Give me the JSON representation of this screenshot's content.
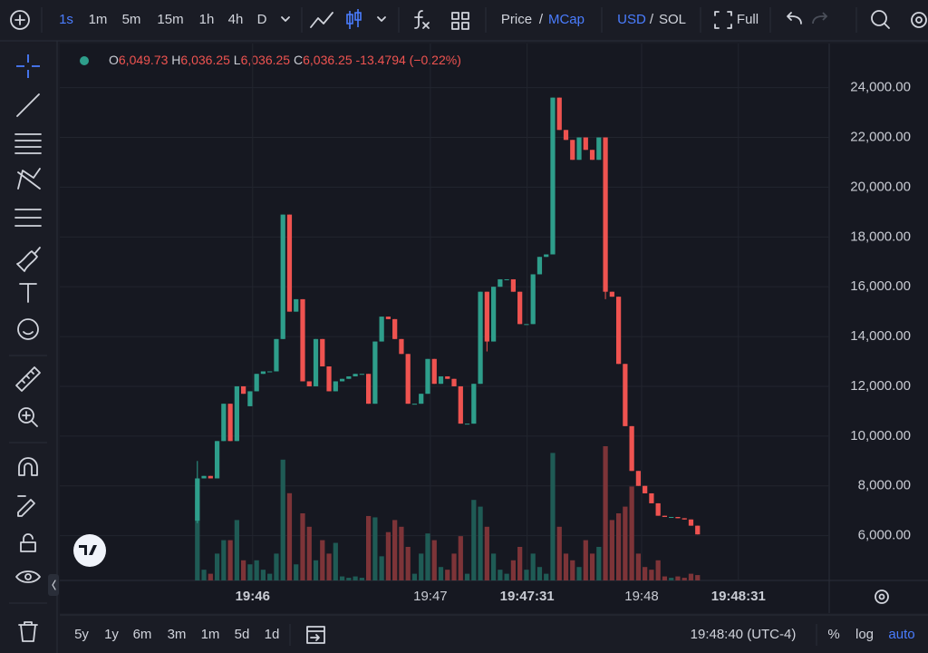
{
  "toolbar": {
    "intervals": [
      "1s",
      "1m",
      "5m",
      "15m",
      "1h",
      "4h",
      "D"
    ],
    "price": "Price",
    "price_sep": "/",
    "mcap": "MCap",
    "usd": "USD",
    "currency_sep": "/",
    "sol": "SOL",
    "full": "Full"
  },
  "legend": {
    "o": "O",
    "o_value": "6,049.73",
    "h": "H",
    "h_value": "6,036.25",
    "l": "L",
    "l_value": "6,036.25",
    "c": "C",
    "c_value": "6,036.25",
    "change": "-13.4794 (−0.22%)"
  },
  "bottom": {
    "ranges": [
      "5y",
      "1y",
      "6m",
      "3m",
      "1m",
      "5d",
      "1d"
    ],
    "time": "19:48:40 (UTC-4)",
    "percent": "%",
    "log": "log",
    "auto": "auto"
  },
  "chart_data": {
    "type": "candlestick",
    "log": false,
    "grid": true,
    "up_color": "#2e9e8b",
    "down_color": "#ef5350",
    "volume_up_color": "#1f5b55",
    "volume_down_color": "#7d3438",
    "open": [
      6600,
      8300,
      8400,
      8300,
      9800,
      11300,
      9800,
      12000,
      11200,
      11800,
      12500,
      12600,
      12600,
      13900,
      18900,
      15000,
      15500,
      12200,
      12000,
      13900,
      12800,
      11800,
      12200,
      12300,
      12400,
      12500,
      12500,
      11300,
      13800,
      14800,
      14700,
      13900,
      13300,
      11300,
      11300,
      11700,
      13100,
      12100,
      12400,
      12300,
      12000,
      10500,
      10500,
      12100,
      15800,
      13800,
      16000,
      16300,
      16300,
      15800,
      14500,
      14500,
      16500,
      17200,
      17300,
      23600,
      22300,
      21900,
      21100,
      22000,
      21500,
      21100,
      22000,
      15800,
      15600,
      12900,
      10400,
      8600,
      8000,
      7700,
      7300,
      6800,
      6750,
      6750,
      6700,
      6650,
      6400
    ],
    "high": [
      9000,
      8400,
      8400,
      9800,
      11300,
      11300,
      12000,
      12000,
      11800,
      12500,
      12600,
      12600,
      13900,
      18900,
      18900,
      15500,
      15500,
      12200,
      13900,
      13900,
      12800,
      12200,
      12300,
      12400,
      12500,
      12500,
      12500,
      13800,
      14800,
      14800,
      14700,
      13900,
      13300,
      11300,
      11700,
      13100,
      13100,
      12400,
      12400,
      12300,
      12000,
      10500,
      12100,
      15800,
      15800,
      16000,
      16300,
      16300,
      16300,
      15800,
      14500,
      16500,
      17200,
      17300,
      23600,
      23600,
      22300,
      21900,
      22000,
      22000,
      21500,
      22000,
      22000,
      15800,
      15600,
      12900,
      10400,
      8600,
      8000,
      7700,
      7300,
      6800,
      6750,
      6750,
      6700,
      6650,
      6400
    ],
    "low": [
      6500,
      8300,
      8300,
      8300,
      9800,
      9800,
      9800,
      11700,
      11200,
      11800,
      12500,
      12600,
      12600,
      13900,
      15000,
      15000,
      12200,
      12000,
      12000,
      12800,
      11800,
      11800,
      12200,
      12300,
      12400,
      12500,
      11300,
      11300,
      13800,
      14700,
      13900,
      13300,
      11300,
      11300,
      11300,
      11700,
      12100,
      12100,
      12300,
      12000,
      10500,
      10500,
      10500,
      12100,
      13400,
      13800,
      16000,
      16300,
      15800,
      14500,
      14500,
      14500,
      16500,
      17200,
      17300,
      22300,
      21900,
      21100,
      21100,
      21500,
      21100,
      21100,
      15500,
      15600,
      12900,
      10400,
      8600,
      8000,
      7700,
      7300,
      6800,
      6750,
      6750,
      6700,
      6650,
      6400,
      6050
    ],
    "close": [
      8300,
      8400,
      8300,
      9800,
      11300,
      9800,
      12000,
      11700,
      11800,
      12500,
      12600,
      12600,
      13900,
      18900,
      15000,
      15500,
      12200,
      12000,
      13900,
      12800,
      11800,
      12200,
      12300,
      12400,
      12500,
      12500,
      11300,
      13800,
      14800,
      14700,
      13900,
      13300,
      11300,
      11300,
      11700,
      13100,
      12100,
      12400,
      12300,
      12000,
      10500,
      10500,
      12100,
      15800,
      13800,
      16000,
      16300,
      16300,
      15800,
      14500,
      14500,
      16500,
      17200,
      17300,
      23600,
      22300,
      21900,
      21100,
      22000,
      21500,
      21100,
      22000,
      15800,
      15600,
      12900,
      10400,
      8600,
      8000,
      7700,
      7300,
      6800,
      6750,
      6750,
      6700,
      6650,
      6400,
      6050
    ],
    "volume": [
      60,
      8,
      5,
      20,
      30,
      30,
      45,
      15,
      12,
      15,
      8,
      5,
      20,
      90,
      65,
      12,
      50,
      40,
      15,
      30,
      20,
      28,
      3,
      2,
      3,
      2,
      48,
      47,
      18,
      36,
      45,
      40,
      25,
      5,
      20,
      35,
      30,
      10,
      8,
      20,
      33,
      5,
      60,
      55,
      40,
      20,
      8,
      5,
      15,
      25,
      8,
      20,
      10,
      5,
      95,
      40,
      20,
      15,
      10,
      30,
      20,
      25,
      100,
      45,
      50,
      55,
      70,
      20,
      10,
      8,
      15,
      3,
      2,
      3,
      2,
      5,
      4
    ],
    "ylim": [
      4200,
      25700
    ],
    "yticks": [
      {
        "value": 6000,
        "label": "6,000.00"
      },
      {
        "value": 8000,
        "label": "8,000.00"
      },
      {
        "value": 10000,
        "label": "10,000.00"
      },
      {
        "value": 12000,
        "label": "12,000.00"
      },
      {
        "value": 14000,
        "label": "14,000.00"
      },
      {
        "value": 16000,
        "label": "16,000.00"
      },
      {
        "value": 18000,
        "label": "18,000.00"
      },
      {
        "value": 20000,
        "label": "20,000.00"
      },
      {
        "value": 22000,
        "label": "22,000.00"
      },
      {
        "value": 24000,
        "label": "24,000.00"
      }
    ],
    "xlim": [
      -20.9,
      96
    ],
    "xticks": [
      {
        "value": 8.4,
        "label": "19:46"
      },
      {
        "value": 35.4,
        "label": "19:47"
      },
      {
        "value": 50.1,
        "label": "19:47:31"
      },
      {
        "value": 67.5,
        "label": "19:48"
      },
      {
        "value": 82.2,
        "label": "19:48:31"
      }
    ]
  }
}
